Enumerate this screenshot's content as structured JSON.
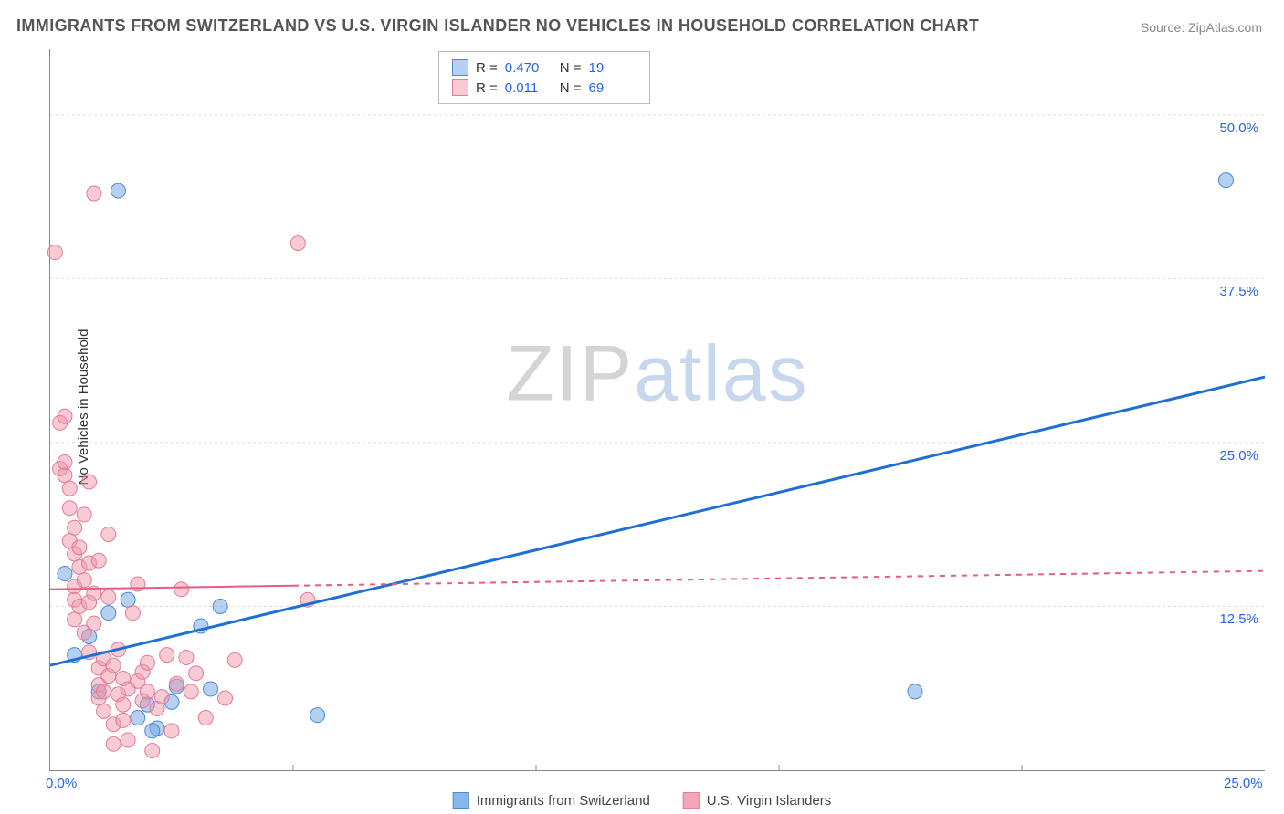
{
  "title": "IMMIGRANTS FROM SWITZERLAND VS U.S. VIRGIN ISLANDER NO VEHICLES IN HOUSEHOLD CORRELATION CHART",
  "source": "Source: ZipAtlas.com",
  "watermark_a": "ZIP",
  "watermark_b": "atlas",
  "chart": {
    "type": "scatter",
    "ylabel": "No Vehicles in Household",
    "background_color": "#ffffff",
    "grid_color": "#dddddd",
    "axis_color": "#888888",
    "xlim": [
      0,
      25
    ],
    "ylim": [
      0,
      55
    ],
    "y_ticks": [
      12.5,
      25.0,
      37.5,
      50.0
    ],
    "y_tick_labels": [
      "12.5%",
      "25.0%",
      "37.5%",
      "50.0%"
    ],
    "x_ticks": [
      0.0,
      25.0
    ],
    "x_tick_labels": [
      "0.0%",
      "25.0%"
    ],
    "x_minor_ticks": [
      5,
      10,
      15,
      20
    ],
    "marker_radius": 8,
    "series": [
      {
        "name": "Immigrants from Switzerland",
        "color_fill": "rgba(120,170,230,0.55)",
        "color_stroke": "#4a8ad4",
        "line_color": "#1d6fd6",
        "line_width": 3,
        "line_dash": "",
        "R": "0.470",
        "N": "19",
        "trend": {
          "x1": 0,
          "y1": 8.0,
          "x2": 25,
          "y2": 30.0
        },
        "points": [
          [
            0.3,
            15.0
          ],
          [
            1.4,
            44.2
          ],
          [
            1.2,
            12.0
          ],
          [
            2.0,
            5.0
          ],
          [
            2.2,
            3.2
          ],
          [
            2.5,
            5.2
          ],
          [
            3.1,
            11.0
          ],
          [
            2.6,
            6.4
          ],
          [
            1.8,
            4.0
          ],
          [
            3.3,
            6.2
          ],
          [
            3.5,
            12.5
          ],
          [
            5.5,
            4.2
          ],
          [
            17.8,
            6.0
          ],
          [
            24.2,
            45.0
          ],
          [
            1.0,
            6.0
          ],
          [
            0.5,
            8.8
          ],
          [
            0.8,
            10.2
          ],
          [
            1.6,
            13.0
          ],
          [
            2.1,
            3.0
          ]
        ]
      },
      {
        "name": "U.S. Virgin Islanders",
        "color_fill": "rgba(240,150,170,0.5)",
        "color_stroke": "#e07c97",
        "line_color": "#e85b82",
        "line_width": 2,
        "line_dash": "6,6",
        "solid_until_x": 5.0,
        "R": "0.011",
        "N": "69",
        "trend": {
          "x1": 0,
          "y1": 13.8,
          "x2": 25,
          "y2": 15.2
        },
        "points": [
          [
            0.1,
            39.5
          ],
          [
            0.2,
            26.5
          ],
          [
            0.2,
            23.0
          ],
          [
            0.3,
            22.5
          ],
          [
            0.3,
            23.5
          ],
          [
            0.4,
            17.5
          ],
          [
            0.4,
            20.0
          ],
          [
            0.4,
            21.5
          ],
          [
            0.5,
            18.5
          ],
          [
            0.5,
            16.5
          ],
          [
            0.5,
            14.0
          ],
          [
            0.5,
            13.0
          ],
          [
            0.5,
            11.5
          ],
          [
            0.6,
            15.5
          ],
          [
            0.6,
            17.0
          ],
          [
            0.6,
            12.5
          ],
          [
            0.7,
            19.5
          ],
          [
            0.7,
            14.5
          ],
          [
            0.7,
            10.5
          ],
          [
            0.8,
            12.8
          ],
          [
            0.8,
            9.0
          ],
          [
            0.8,
            22.0
          ],
          [
            0.8,
            15.8
          ],
          [
            0.9,
            44.0
          ],
          [
            0.9,
            13.5
          ],
          [
            0.9,
            11.2
          ],
          [
            1.0,
            6.5
          ],
          [
            1.0,
            5.5
          ],
          [
            1.0,
            7.8
          ],
          [
            1.0,
            16.0
          ],
          [
            1.1,
            8.5
          ],
          [
            1.1,
            4.5
          ],
          [
            1.1,
            6.0
          ],
          [
            1.2,
            18.0
          ],
          [
            1.2,
            13.2
          ],
          [
            1.2,
            7.2
          ],
          [
            1.3,
            3.5
          ],
          [
            1.3,
            2.0
          ],
          [
            1.3,
            8.0
          ],
          [
            1.4,
            5.8
          ],
          [
            1.4,
            9.2
          ],
          [
            1.5,
            5.0
          ],
          [
            1.5,
            3.8
          ],
          [
            1.5,
            7.0
          ],
          [
            1.6,
            6.2
          ],
          [
            1.6,
            2.3
          ],
          [
            1.7,
            12.0
          ],
          [
            1.8,
            14.2
          ],
          [
            1.8,
            6.8
          ],
          [
            1.9,
            5.3
          ],
          [
            1.9,
            7.5
          ],
          [
            2.0,
            8.2
          ],
          [
            2.0,
            6.0
          ],
          [
            2.1,
            1.5
          ],
          [
            2.2,
            4.7
          ],
          [
            2.3,
            5.6
          ],
          [
            2.4,
            8.8
          ],
          [
            2.5,
            3.0
          ],
          [
            2.6,
            6.6
          ],
          [
            2.7,
            13.8
          ],
          [
            2.8,
            8.6
          ],
          [
            2.9,
            6.0
          ],
          [
            3.0,
            7.4
          ],
          [
            3.6,
            5.5
          ],
          [
            3.8,
            8.4
          ],
          [
            5.1,
            40.2
          ],
          [
            5.3,
            13.0
          ],
          [
            3.2,
            4.0
          ],
          [
            0.3,
            27.0
          ]
        ]
      }
    ]
  },
  "bottom_legend": [
    {
      "label": "Immigrants from Switzerland",
      "fill": "rgba(120,170,230,0.85)",
      "border": "#4a8ad4"
    },
    {
      "label": "U.S. Virgin Islanders",
      "fill": "rgba(240,150,170,0.85)",
      "border": "#e07c97"
    }
  ]
}
